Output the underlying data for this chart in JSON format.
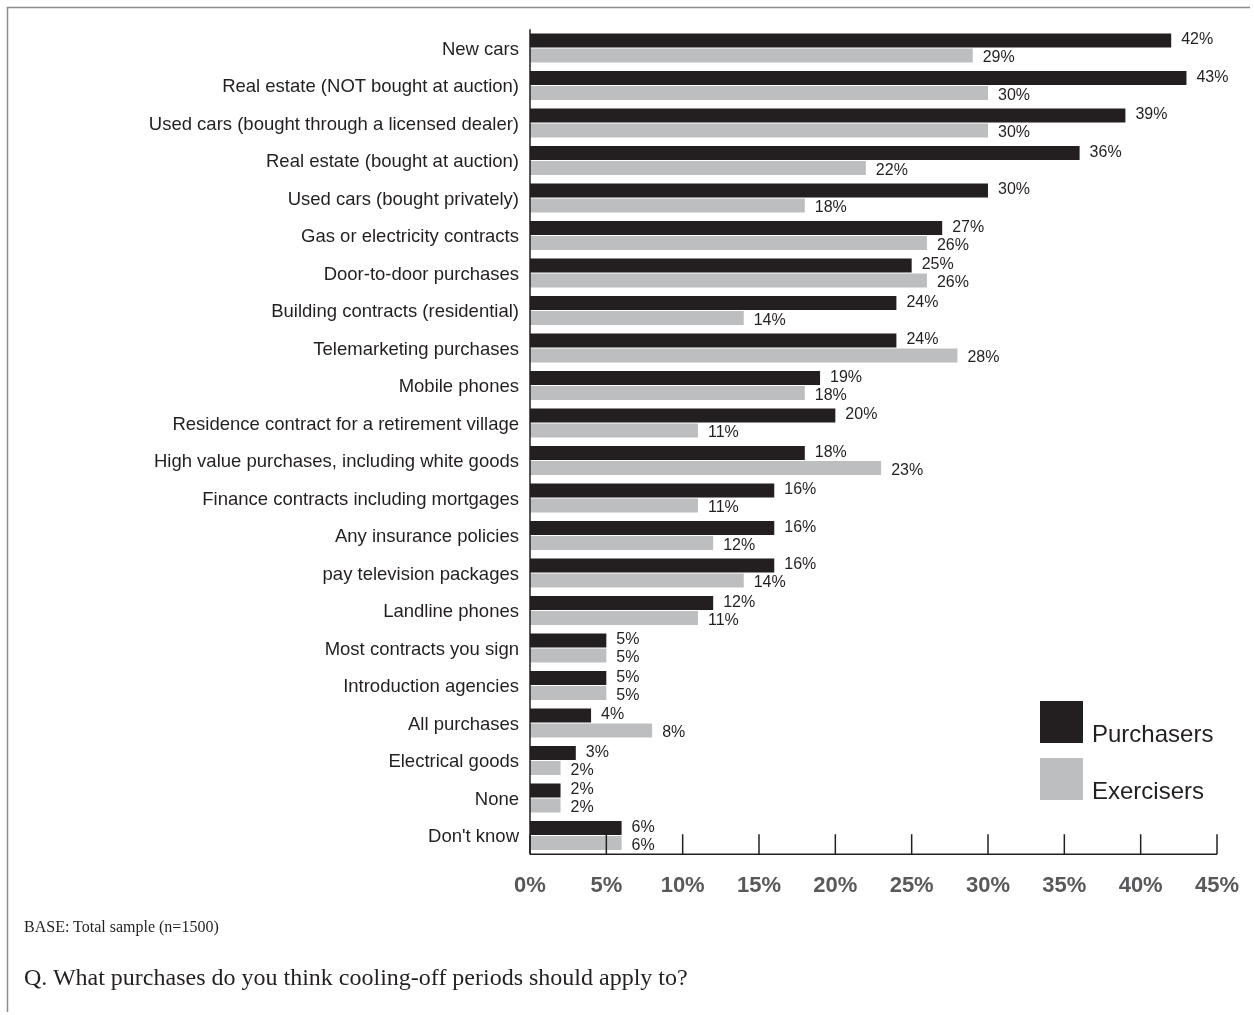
{
  "chart_data": {
    "type": "bar",
    "orientation": "horizontal",
    "title": "Q. What purchases do you think cooling-off periods should apply to?",
    "annotations": [
      "BASE: Total sample (n=1500)"
    ],
    "categories": [
      "New cars",
      "Real estate (NOT bought at auction)",
      "Used cars (bought through a licensed dealer)",
      "Real estate (bought at auction)",
      "Used cars (bought privately)",
      "Gas or electricity contracts",
      "Door-to-door purchases",
      "Building contracts (residential)",
      "Telemarketing purchases",
      "Mobile phones",
      "Residence contract for a retirement village",
      "High value purchases, including white goods",
      "Finance contracts including mortgages",
      "Any insurance policies",
      "pay television packages",
      "Landline phones",
      "Most contracts you sign",
      "Introduction agencies",
      "All purchases",
      "Electrical goods",
      "None",
      "Don't know"
    ],
    "series": [
      {
        "name": "Purchasers",
        "color": "#231f20",
        "values": [
          42,
          43,
          39,
          36,
          30,
          27,
          25,
          24,
          24,
          19,
          20,
          18,
          16,
          16,
          16,
          12,
          5,
          5,
          4,
          3,
          2,
          6
        ],
        "value_labels": [
          "42%",
          "43%",
          "39%",
          "36%",
          "30%",
          "27%",
          "25%",
          "24%",
          "24%",
          "19%",
          "20%",
          "18%",
          "16%",
          "16%",
          "16%",
          "12%",
          "5%",
          "5%",
          "4%",
          "3%",
          "2%",
          "6%"
        ]
      },
      {
        "name": "Exercisers",
        "color": "#bcbec0",
        "values": [
          29,
          30,
          30,
          22,
          18,
          26,
          26,
          14,
          28,
          18,
          11,
          23,
          11,
          12,
          14,
          11,
          5,
          5,
          8,
          2,
          2,
          6
        ],
        "value_labels": [
          "29%",
          "30%",
          "30%",
          "22%",
          "18%",
          "26%",
          "26%",
          "14%",
          "28%",
          "18%",
          "11%",
          "23%",
          "11%",
          "12%",
          "14%",
          "11%",
          "5%",
          "5%",
          "8%",
          "2%",
          "2%",
          "6%"
        ]
      }
    ],
    "xlim": [
      0,
      45
    ],
    "xticks": [
      {
        "value": 0,
        "label": "0%"
      },
      {
        "value": 5,
        "label": "5%"
      },
      {
        "value": 10,
        "label": "10%"
      },
      {
        "value": 15,
        "label": "15%"
      },
      {
        "value": 20,
        "label": "20%"
      },
      {
        "value": 25,
        "label": "25%"
      },
      {
        "value": 30,
        "label": "30%"
      },
      {
        "value": 35,
        "label": "35%"
      },
      {
        "value": 40,
        "label": "40%"
      },
      {
        "value": 45,
        "label": "45%"
      }
    ],
    "legend": "bottom right"
  }
}
